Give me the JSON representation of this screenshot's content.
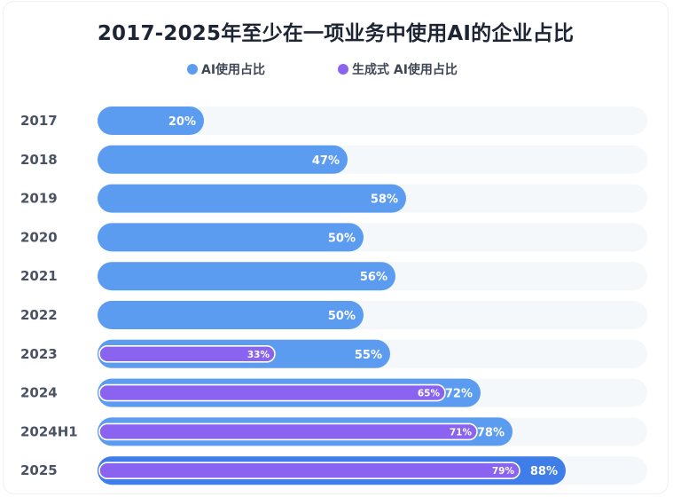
{
  "chart_data": {
    "type": "bar",
    "orientation": "horizontal",
    "title": "2017-2025年至少在一项业务中使用AI的企业占比",
    "categories": [
      "2017",
      "2018",
      "2019",
      "2020",
      "2021",
      "2022",
      "2023",
      "2024",
      "2024H1",
      "2025"
    ],
    "series": [
      {
        "name": "AI使用占比",
        "color": "#5b9cf0",
        "values": [
          20,
          47,
          58,
          50,
          56,
          50,
          55,
          72,
          78,
          88
        ],
        "labels": [
          "20%",
          "47%",
          "58%",
          "50%",
          "56%",
          "50%",
          "55%",
          "72%",
          "78%",
          "88%"
        ]
      },
      {
        "name": "生成式 AI使用占比",
        "color": "#8a63f0",
        "values": [
          null,
          null,
          null,
          null,
          null,
          null,
          33,
          65,
          71,
          79
        ],
        "labels": [
          "",
          "",
          "",
          "",
          "",
          "",
          "33%",
          "65%",
          "71%",
          "79%"
        ]
      }
    ],
    "highlight_category": "2025",
    "highlight_color": "#3f7ee8",
    "track_color": "#f4f8fb",
    "xlim": [
      0,
      100
    ],
    "legend_position": "top",
    "grid": false
  }
}
